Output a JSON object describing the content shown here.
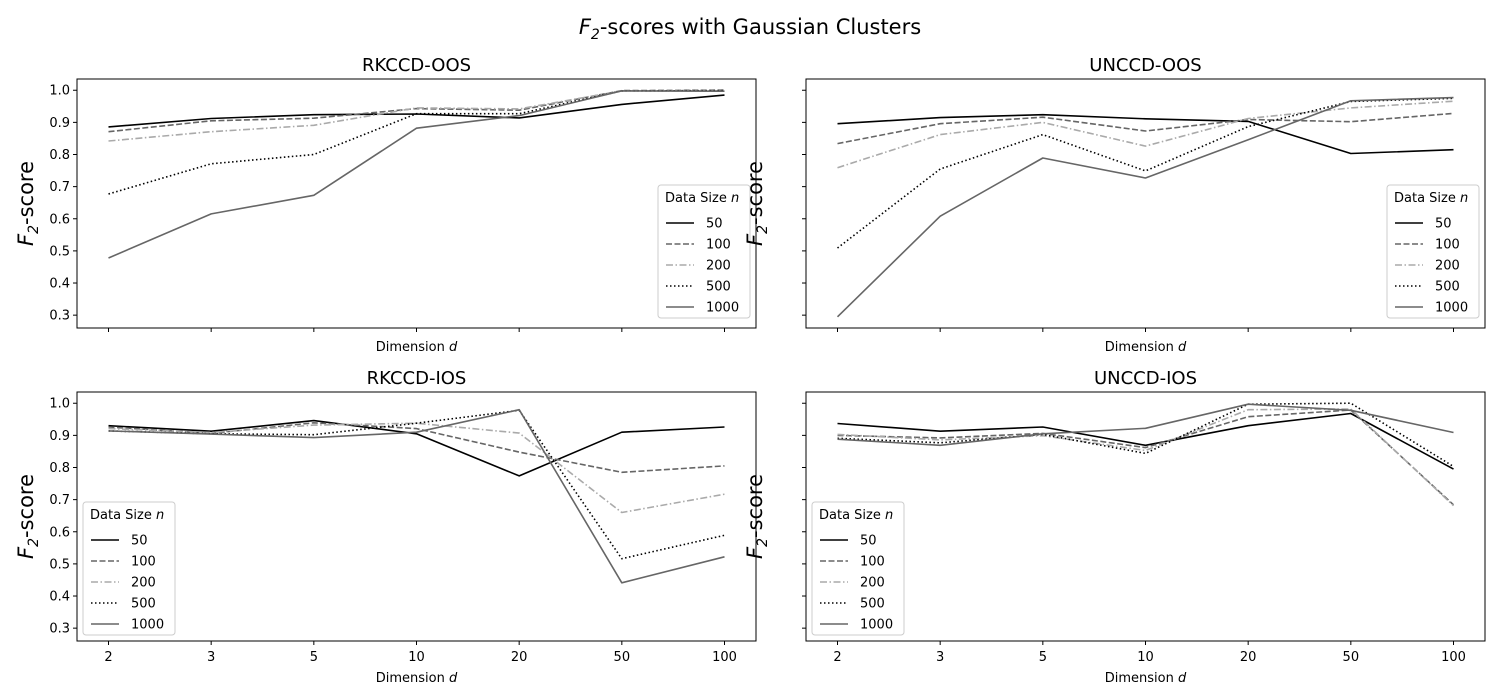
{
  "figure": {
    "title_prefix": "F",
    "title_sub": "2",
    "title_rest": "-scores with Gaussian Clusters"
  },
  "colors": {
    "50": "#000000",
    "100": "#666666",
    "200": "#aaaaaa",
    "500": "#000000",
    "1000": "#666666"
  },
  "chart_data": [
    {
      "type": "line",
      "title": "RKCCD-OOS",
      "xlabel": "Dimension",
      "xlabel_var": "d",
      "ylabel_prefix": "F",
      "ylabel_sub": "2",
      "ylabel_rest": "-score",
      "categories": [
        "2",
        "3",
        "5",
        "10",
        "20",
        "50",
        "100"
      ],
      "ylim": [
        0.26,
        1.035
      ],
      "yticks": [
        1.0,
        0.9,
        0.8,
        0.7,
        0.6,
        0.5,
        0.4,
        0.3
      ],
      "show_xticklabels": false,
      "show_yticklabels": true,
      "legend": {
        "title": "Data Size",
        "title_var": "n",
        "position": "center-right"
      },
      "series": [
        {
          "name": "50",
          "style": "solid",
          "values": [
            0.886,
            0.912,
            0.924,
            0.926,
            0.914,
            0.956,
            0.985
          ]
        },
        {
          "name": "100",
          "style": "dashed",
          "values": [
            0.871,
            0.905,
            0.913,
            0.943,
            0.938,
            0.999,
            1.0
          ]
        },
        {
          "name": "200",
          "style": "dashdot",
          "values": [
            0.842,
            0.871,
            0.891,
            0.945,
            0.942,
            0.998,
            0.998
          ]
        },
        {
          "name": "500",
          "style": "dotted",
          "values": [
            0.677,
            0.771,
            0.8,
            0.927,
            0.927,
            0.998,
            0.999
          ]
        },
        {
          "name": "1000",
          "style": "solid-gray",
          "values": [
            0.478,
            0.615,
            0.673,
            0.882,
            0.921,
            0.998,
            0.997
          ]
        }
      ]
    },
    {
      "type": "line",
      "title": "UNCCD-OOS",
      "xlabel": "Dimension",
      "xlabel_var": "d",
      "ylabel_prefix": "F",
      "ylabel_sub": "2",
      "ylabel_rest": "-score",
      "categories": [
        "2",
        "3",
        "5",
        "10",
        "20",
        "50",
        "100"
      ],
      "ylim": [
        0.26,
        1.035
      ],
      "yticks": [
        1.0,
        0.9,
        0.8,
        0.7,
        0.6,
        0.5,
        0.4,
        0.3
      ],
      "show_xticklabels": false,
      "show_yticklabels": false,
      "legend": {
        "title": "Data Size",
        "title_var": "n",
        "position": "center-right"
      },
      "series": [
        {
          "name": "50",
          "style": "solid",
          "values": [
            0.896,
            0.915,
            0.924,
            0.911,
            0.903,
            0.803,
            0.815
          ]
        },
        {
          "name": "100",
          "style": "dashed",
          "values": [
            0.834,
            0.896,
            0.916,
            0.873,
            0.909,
            0.902,
            0.928
          ]
        },
        {
          "name": "200",
          "style": "dashdot",
          "values": [
            0.759,
            0.862,
            0.9,
            0.826,
            0.912,
            0.945,
            0.966
          ]
        },
        {
          "name": "500",
          "style": "dotted",
          "values": [
            0.509,
            0.755,
            0.862,
            0.749,
            0.887,
            0.965,
            0.975
          ]
        },
        {
          "name": "1000",
          "style": "solid-gray",
          "values": [
            0.295,
            0.608,
            0.789,
            0.727,
            0.846,
            0.967,
            0.977
          ]
        }
      ]
    },
    {
      "type": "line",
      "title": "RKCCD-IOS",
      "xlabel": "Dimension",
      "xlabel_var": "d",
      "ylabel_prefix": "F",
      "ylabel_sub": "2",
      "ylabel_rest": "-score",
      "categories": [
        "2",
        "3",
        "5",
        "10",
        "20",
        "50",
        "100"
      ],
      "ylim": [
        0.26,
        1.035
      ],
      "yticks": [
        1.0,
        0.9,
        0.8,
        0.7,
        0.6,
        0.5,
        0.4,
        0.3
      ],
      "show_xticklabels": true,
      "show_yticklabels": true,
      "legend": {
        "title": "Data Size",
        "title_var": "n",
        "position": "lower-left"
      },
      "series": [
        {
          "name": "50",
          "style": "solid",
          "values": [
            0.93,
            0.913,
            0.946,
            0.905,
            0.774,
            0.91,
            0.926
          ]
        },
        {
          "name": "100",
          "style": "dashed",
          "values": [
            0.926,
            0.906,
            0.939,
            0.921,
            0.848,
            0.785,
            0.805
          ]
        },
        {
          "name": "200",
          "style": "dashdot",
          "values": [
            0.921,
            0.909,
            0.932,
            0.938,
            0.907,
            0.66,
            0.717
          ]
        },
        {
          "name": "500",
          "style": "dotted",
          "values": [
            0.914,
            0.905,
            0.902,
            0.938,
            0.978,
            0.516,
            0.589
          ]
        },
        {
          "name": "1000",
          "style": "solid-gray",
          "values": [
            0.914,
            0.904,
            0.893,
            0.91,
            0.98,
            0.441,
            0.522
          ]
        }
      ]
    },
    {
      "type": "line",
      "title": "UNCCD-IOS",
      "xlabel": "Dimension",
      "xlabel_var": "d",
      "ylabel_prefix": "F",
      "ylabel_sub": "2",
      "ylabel_rest": "-score",
      "categories": [
        "2",
        "3",
        "5",
        "10",
        "20",
        "50",
        "100"
      ],
      "ylim": [
        0.26,
        1.035
      ],
      "yticks": [
        1.0,
        0.9,
        0.8,
        0.7,
        0.6,
        0.5,
        0.4,
        0.3
      ],
      "show_xticklabels": true,
      "show_yticklabels": false,
      "legend": {
        "title": "Data Size",
        "title_var": "n",
        "position": "lower-left"
      },
      "series": [
        {
          "name": "50",
          "style": "solid",
          "values": [
            0.937,
            0.913,
            0.926,
            0.869,
            0.93,
            0.968,
            0.795
          ]
        },
        {
          "name": "100",
          "style": "dashed",
          "values": [
            0.9,
            0.892,
            0.906,
            0.862,
            0.958,
            0.979,
            0.684
          ]
        },
        {
          "name": "200",
          "style": "dashdot",
          "values": [
            0.903,
            0.886,
            0.899,
            0.853,
            0.98,
            0.982,
            0.681
          ]
        },
        {
          "name": "500",
          "style": "dotted",
          "values": [
            0.891,
            0.877,
            0.903,
            0.844,
            0.997,
            1.0,
            0.803
          ]
        },
        {
          "name": "1000",
          "style": "solid-gray",
          "values": [
            0.888,
            0.869,
            0.905,
            0.922,
            0.997,
            0.978,
            0.909
          ]
        }
      ]
    }
  ]
}
